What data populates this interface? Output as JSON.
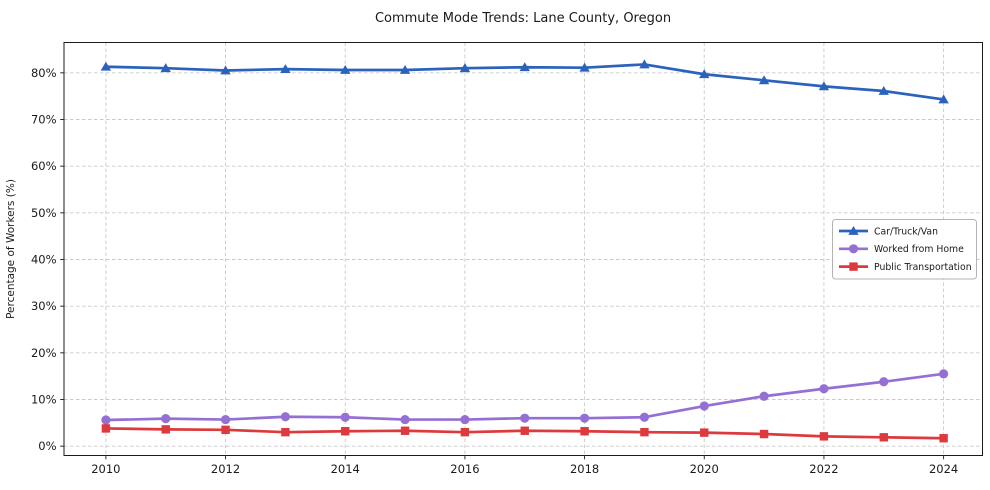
{
  "chart_data": {
    "type": "line",
    "title": "Commute Mode Trends: Lane County, Oregon",
    "xlabel": "",
    "ylabel": "Percentage of Workers (%)",
    "x": [
      2010,
      2011,
      2012,
      2013,
      2014,
      2015,
      2016,
      2017,
      2018,
      2019,
      2020,
      2021,
      2022,
      2023,
      2024
    ],
    "series": [
      {
        "name": "Car/Truck/Van",
        "color": "#2b62bc",
        "marker": "triangle",
        "values": [
          81.3,
          81.0,
          80.5,
          80.8,
          80.6,
          80.6,
          81.0,
          81.2,
          81.1,
          81.8,
          79.7,
          78.4,
          77.1,
          76.1,
          74.3
        ]
      },
      {
        "name": "Worked from Home",
        "color": "#9570d4",
        "marker": "circle",
        "values": [
          5.6,
          5.9,
          5.7,
          6.3,
          6.2,
          5.7,
          5.7,
          6.0,
          6.0,
          6.2,
          8.6,
          10.7,
          12.3,
          13.8,
          15.5
        ]
      },
      {
        "name": "Public Transportation",
        "color": "#dd3a3d",
        "marker": "square",
        "values": [
          3.8,
          3.6,
          3.5,
          3.0,
          3.2,
          3.3,
          3.0,
          3.3,
          3.2,
          3.0,
          2.9,
          2.6,
          2.1,
          1.9,
          1.7
        ]
      }
    ],
    "xticks": [
      2010,
      2012,
      2014,
      2016,
      2018,
      2020,
      2022,
      2024
    ],
    "yticks": [
      0,
      10,
      20,
      30,
      40,
      50,
      60,
      70,
      80
    ],
    "ytick_suffix": "%",
    "xlim": [
      2009.3,
      2024.65
    ],
    "ylim": [
      -2,
      86.5
    ],
    "grid": true,
    "grid_style": "dashed",
    "legend_position": "center-right"
  }
}
